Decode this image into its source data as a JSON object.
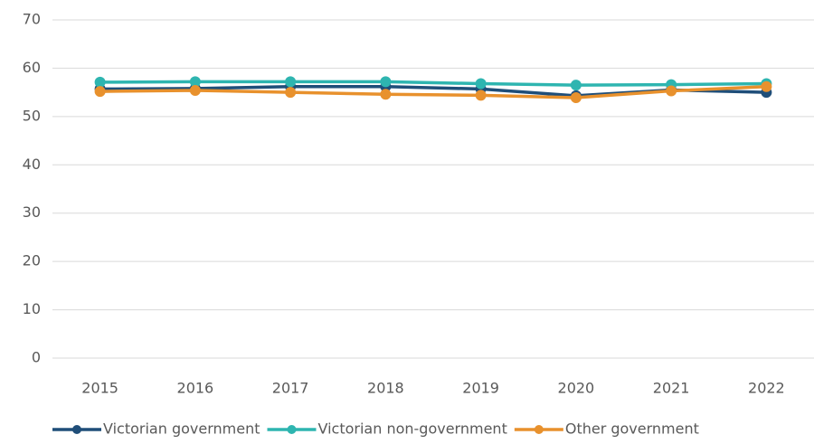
{
  "chart_data": {
    "type": "line",
    "categories": [
      "2015",
      "2016",
      "2017",
      "2018",
      "2019",
      "2020",
      "2021",
      "2022"
    ],
    "series": [
      {
        "name": "Victorian government",
        "color": "#1f4e79",
        "values": [
          55.7,
          55.8,
          56.2,
          56.2,
          55.7,
          54.3,
          55.5,
          55.0
        ]
      },
      {
        "name": "Victorian non-government",
        "color": "#2eb5b0",
        "values": [
          57.1,
          57.2,
          57.2,
          57.2,
          56.8,
          56.5,
          56.6,
          56.8
        ]
      },
      {
        "name": "Other government",
        "color": "#e8912d",
        "values": [
          55.2,
          55.4,
          55.0,
          54.6,
          54.4,
          53.9,
          55.3,
          56.2
        ]
      }
    ],
    "ylim": [
      0,
      70
    ],
    "yticks": [
      0,
      10,
      20,
      30,
      40,
      50,
      60,
      70
    ],
    "grid": true,
    "legend": "bottom"
  }
}
